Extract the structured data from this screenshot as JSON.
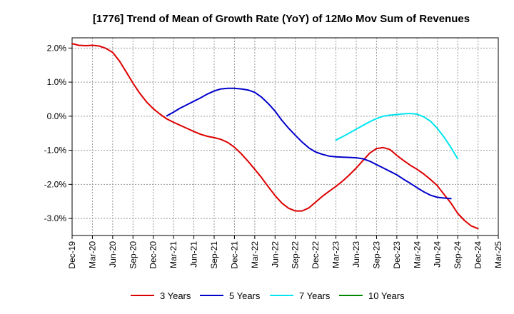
{
  "chart_data": {
    "type": "line",
    "title": "[1776]  Trend of Mean of Growth Rate (YoY) of 12Mo Mov Sum of Revenues",
    "xlabel": "",
    "ylabel": "",
    "ylim": [
      -3.5,
      2.3
    ],
    "grid": true,
    "legend_position": "bottom",
    "x_categories": [
      "Dec-19",
      "Mar-20",
      "Jun-20",
      "Sep-20",
      "Dec-20",
      "Mar-21",
      "Jun-21",
      "Sep-21",
      "Dec-21",
      "Mar-22",
      "Jun-22",
      "Sep-22",
      "Dec-22",
      "Mar-23",
      "Jun-23",
      "Sep-23",
      "Dec-23",
      "Mar-24",
      "Jun-24",
      "Sep-24",
      "Dec-24",
      "Mar-25"
    ],
    "y_ticks": [
      {
        "value": 2.0,
        "label": "2.0%"
      },
      {
        "value": 1.0,
        "label": "1.0%"
      },
      {
        "value": 0.0,
        "label": "0.0%"
      },
      {
        "value": -1.0,
        "label": "-1.0%"
      },
      {
        "value": -2.0,
        "label": "-2.0%"
      },
      {
        "value": -3.0,
        "label": "-3.0%"
      }
    ],
    "series": [
      {
        "name": "3 Years",
        "color": "#dd0000",
        "start_index": 0,
        "values": [
          2.13,
          2.08,
          2.07,
          2.08,
          2.06,
          1.99,
          1.87,
          1.62,
          1.3,
          0.97,
          0.67,
          0.42,
          0.22,
          0.06,
          -0.08,
          -0.18,
          -0.27,
          -0.36,
          -0.45,
          -0.53,
          -0.59,
          -0.63,
          -0.68,
          -0.77,
          -0.91,
          -1.1,
          -1.32,
          -1.56,
          -1.8,
          -2.07,
          -2.33,
          -2.55,
          -2.7,
          -2.78,
          -2.78,
          -2.69,
          -2.52,
          -2.35,
          -2.2,
          -2.06,
          -1.9,
          -1.72,
          -1.52,
          -1.3,
          -1.08,
          -0.95,
          -0.92,
          -0.98,
          -1.15,
          -1.3,
          -1.44,
          -1.56,
          -1.7,
          -1.86,
          -2.04,
          -2.3,
          -2.55,
          -2.85,
          -3.06,
          -3.22,
          -3.3
        ]
      },
      {
        "name": "5 Years",
        "color": "#0000cc",
        "start_index": 14,
        "values": [
          0.01,
          0.12,
          0.24,
          0.34,
          0.44,
          0.54,
          0.65,
          0.74,
          0.8,
          0.82,
          0.82,
          0.8,
          0.77,
          0.7,
          0.56,
          0.37,
          0.15,
          -0.12,
          -0.35,
          -0.56,
          -0.76,
          -0.93,
          -1.05,
          -1.12,
          -1.17,
          -1.19,
          -1.2,
          -1.21,
          -1.22,
          -1.25,
          -1.32,
          -1.42,
          -1.52,
          -1.62,
          -1.72,
          -1.85,
          -1.97,
          -2.1,
          -2.22,
          -2.32,
          -2.38,
          -2.4,
          -2.42
        ]
      },
      {
        "name": "7 Years",
        "color": "#00e5ee",
        "start_index": 39,
        "values": [
          -0.7,
          -0.6,
          -0.49,
          -0.38,
          -0.27,
          -0.16,
          -0.07,
          0.0,
          0.03,
          0.05,
          0.07,
          0.08,
          0.06,
          -0.02,
          -0.15,
          -0.36,
          -0.62,
          -0.92,
          -1.25
        ]
      },
      {
        "name": "10 Years",
        "color": "#008800",
        "start_index": 0,
        "values": []
      }
    ]
  }
}
